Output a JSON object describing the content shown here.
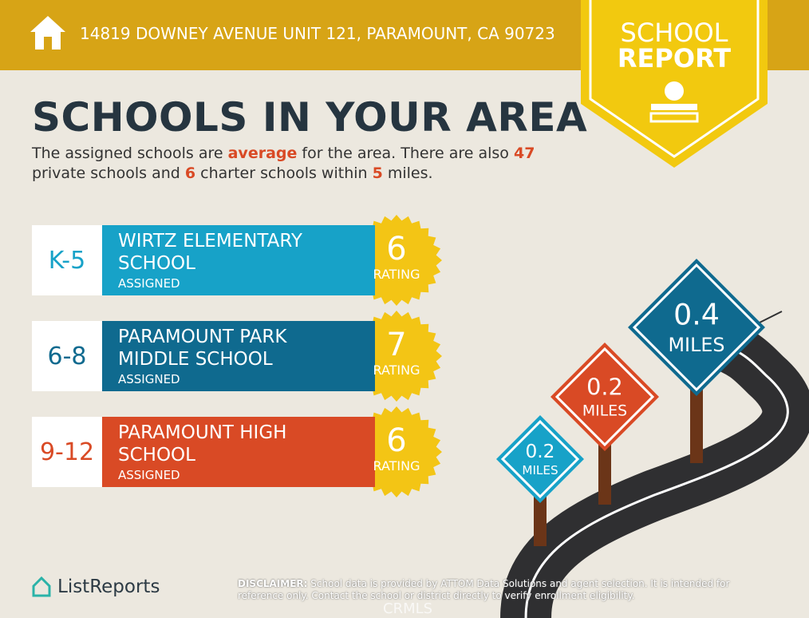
{
  "header": {
    "address": "14819 DOWNEY AVENUE UNIT 121, PARAMOUNT, CA 90723"
  },
  "badge": {
    "line1": "SCHOOL",
    "line2": "REPORT"
  },
  "title": "SCHOOLS IN YOUR AREA",
  "summary": [
    "The assigned schools are ",
    "average",
    " for the area. There are also ",
    47,
    " private schools and ",
    6,
    " charter schools within ",
    5,
    " miles."
  ],
  "schools": [
    {
      "grade": "K-5",
      "name": "WIRTZ ELEMENTARY SCHOOL",
      "status": "ASSIGNED",
      "rating": 6,
      "rating_label": "RATING"
    },
    {
      "grade": "6-8",
      "name": "PARAMOUNT PARK MIDDLE SCHOOL",
      "status": "ASSIGNED",
      "rating": 7,
      "rating_label": "RATING"
    },
    {
      "grade": "9-12",
      "name": "PARAMOUNT HIGH SCHOOL",
      "status": "ASSIGNED",
      "rating": 6,
      "rating_label": "RATING"
    }
  ],
  "signs": [
    {
      "distance": "0.4",
      "unit": "MILES"
    },
    {
      "distance": "0.2",
      "unit": "MILES"
    },
    {
      "distance": "0.2",
      "unit": "MILES"
    }
  ],
  "footer": {
    "logo": "ListReports",
    "disclaimer_label": "DISCLAIMER:",
    "disclaimer": "School data is provided by ATTOM Data Solutions and agent selection. It is intended for reference only. Contact the school or district directly to verify enrollment eligibility.",
    "watermark": "CRMLS"
  }
}
